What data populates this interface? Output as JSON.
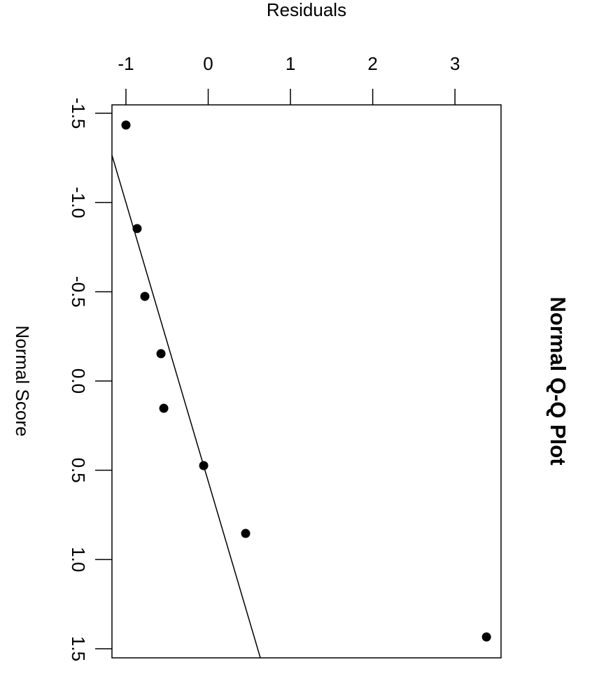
{
  "chart_data": {
    "type": "scatter",
    "title": "Normal Q-Q Plot",
    "x_label": "Normal Score",
    "y_label": "Residuals",
    "x": [
      -1.434,
      -0.854,
      -0.474,
      -0.153,
      0.153,
      0.474,
      0.854,
      1.434
    ],
    "y": [
      -1.0,
      -0.864,
      -0.77,
      -0.574,
      -0.54,
      -0.055,
      0.455,
      3.383
    ],
    "color": "#000000",
    "reference_line": {
      "x": [
        -1.265,
        1.551
      ],
      "y": [
        -1.17,
        0.634
      ]
    },
    "xlim": [
      -1.547,
      1.551
    ],
    "xticks": [
      -1.5,
      {
        "value": -1,
        "label": "-1.0"
      },
      -0.5,
      {
        "value": 0,
        "label": "0.0"
      },
      0.5,
      {
        "value": 1,
        "label": "1.0"
      },
      1.5
    ],
    "ylim": [
      -1.17,
      3.56
    ],
    "yticks": [
      -1,
      0,
      1,
      2,
      3
    ]
  }
}
